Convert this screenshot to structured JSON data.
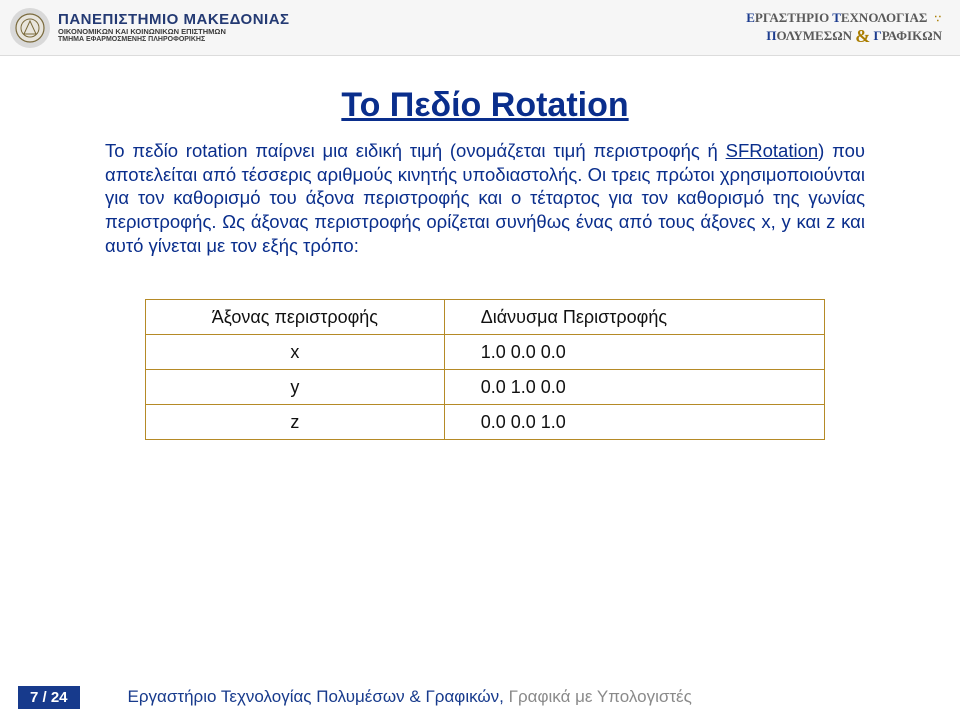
{
  "header": {
    "university_name": "ΠΑΝΕΠΙΣΤΗΜΙΟ ΜΑΚΕΔΟΝΙΑΣ",
    "university_sub": "ΟΙΚΟΝΟΜΙΚΩΝ ΚΑΙ ΚΟΙΝΩΝΙΚΩΝ ΕΠΙΣΤΗΜΩΝ",
    "department": "ΤΜΗΜΑ ΕΦΑΡΜΟΣΜΕΝΗΣ ΠΛΗΡΟΦΟΡΙΚΗΣ",
    "lab_line1_a": "Ε",
    "lab_line1_b": "ΡΓΑΣΤΗΡΙΟ",
    "lab_line1_c": "Τ",
    "lab_line1_d": "ΕΧΝΟΛΟΓΙΑΣ",
    "lab_amp": "&",
    "lab_line2_a": "Π",
    "lab_line2_b": "ΟΛΥΜΕΣΩΝ",
    "lab_line2_c": "Γ",
    "lab_line2_d": "ΡΑΦΙΚΩΝ"
  },
  "content": {
    "title": "Το Πεδίο Rotation",
    "para_a": "Το πεδίο rotation παίρνει μια ειδική τιμή (ονομάζεται τιμή περιστροφής ή ",
    "para_link": "SFRotation",
    "para_b": ") που αποτελείται από τέσσερις αριθμούς κινητής υποδιαστολής. Οι τρεις πρώτοι χρησιμοποιούνται για τον καθορισμό του άξονα περιστροφής και ο τέταρτος για τον καθορισμό της γωνίας περιστροφής. Ως άξονας περιστροφής ορίζεται συνήθως ένας από τους άξονες x, y και z και αυτό γίνεται με τον εξής τρόπο:"
  },
  "table": {
    "border_color": "#b58a26",
    "header_left": "Άξονας περιστροφής",
    "header_right": "Διάνυσμα Περιστροφής",
    "rows": [
      {
        "axis": "x",
        "vec": "1.0 0.0 0.0"
      },
      {
        "axis": "y",
        "vec": "0.0 1.0 0.0"
      },
      {
        "axis": "z",
        "vec": "0.0 0.0 1.0"
      }
    ]
  },
  "footer": {
    "page": "7 / 24",
    "text_a": "Εργαστήριο Τεχνολογίας Πολυμέσων & Γραφικών,  ",
    "text_b": "Γραφικά με Υπολογιστές"
  },
  "colors": {
    "primary": "#0a2e8c",
    "table_border": "#b58a26"
  }
}
